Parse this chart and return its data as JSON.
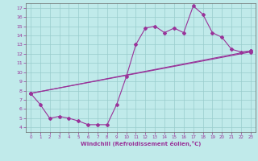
{
  "xlabel": "Windchill (Refroidissement éolien,°C)",
  "xlim": [
    -0.5,
    23.5
  ],
  "ylim": [
    3.5,
    17.5
  ],
  "xticks": [
    0,
    1,
    2,
    3,
    4,
    5,
    6,
    7,
    8,
    9,
    10,
    11,
    12,
    13,
    14,
    15,
    16,
    17,
    18,
    19,
    20,
    21,
    22,
    23
  ],
  "yticks": [
    4,
    5,
    6,
    7,
    8,
    9,
    10,
    11,
    12,
    13,
    14,
    15,
    16,
    17
  ],
  "bg_color": "#c0eaea",
  "grid_color": "#99cccc",
  "line_color": "#993399",
  "line1_x": [
    0,
    1,
    2,
    3,
    4,
    5,
    6,
    7,
    8,
    9,
    10,
    11,
    12,
    13,
    14,
    15,
    16,
    17,
    18,
    19,
    20,
    21,
    22,
    23
  ],
  "line1_y": [
    7.7,
    6.5,
    5.0,
    5.2,
    5.0,
    4.7,
    4.3,
    4.3,
    4.3,
    6.5,
    9.5,
    13.0,
    14.8,
    15.0,
    14.3,
    14.8,
    14.3,
    17.2,
    16.3,
    14.3,
    13.8,
    12.5,
    12.2,
    12.3
  ],
  "line2_x": [
    0,
    23
  ],
  "line2_y": [
    7.7,
    12.2
  ],
  "line3_x": [
    0,
    23
  ],
  "line3_y": [
    7.7,
    12.3
  ],
  "marker": "D",
  "markersize": 2.0,
  "linewidth": 0.8,
  "tick_fontsize_x": 4.0,
  "tick_fontsize_y": 4.5,
  "xlabel_fontsize": 5.0
}
